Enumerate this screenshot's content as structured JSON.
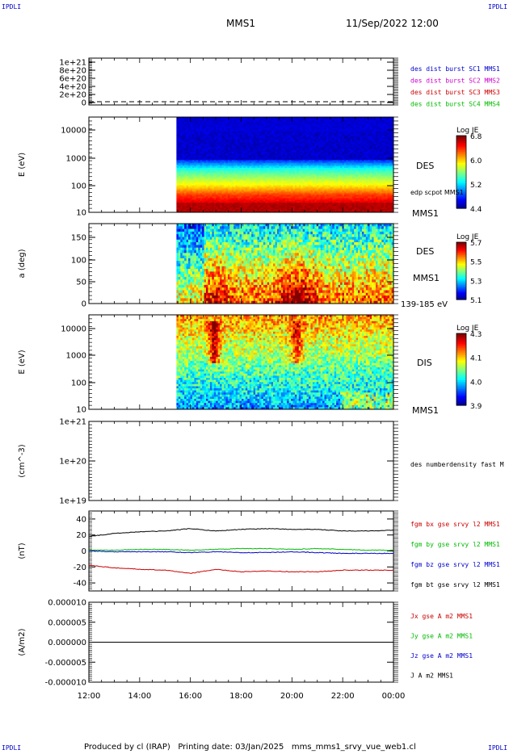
{
  "corner_marks": [
    "IPDLI",
    "IPDLI",
    "IPDLI",
    "IPDLI"
  ],
  "header": {
    "spacecraft": "MMS1",
    "datetime": "11/Sep/2022 12:00"
  },
  "footer": "Produced by cl (IRAP)   Printing date: 03/Jan/2025   mms_mms1_srvy_vue_web1.cl",
  "time_axis": {
    "ticks": [
      "12:00",
      "14:00",
      "16:00",
      "18:00",
      "20:00",
      "22:00",
      "00:00"
    ],
    "start_hour": 12,
    "end_hour": 24
  },
  "panels": [
    {
      "id": "dist",
      "ytick_labels": [
        "1e+21",
        "8e+20",
        "6e+20",
        "4e+20",
        "2e+20",
        "0"
      ],
      "legend": [
        {
          "text": "des dist burst SC1 MMS1",
          "color": "#0000cc"
        },
        {
          "text": "des dist burst SC2 MMS2",
          "color": "#cc00cc"
        },
        {
          "text": "des dist burst SC3 MMS3",
          "color": "#cc0000"
        },
        {
          "text": "des dist burst SC4 MMS4",
          "color": "#00bb00"
        }
      ]
    },
    {
      "id": "des_energy",
      "ylabel": "E (eV)",
      "ytick_labels": [
        "10000",
        "1000",
        "100",
        "10"
      ],
      "side_labels": [
        "DES",
        "edp scpot MMS1",
        "MMS1"
      ],
      "colorbar": {
        "title": "Log JE",
        "ticks": [
          "6.8",
          "6.0",
          "5.2",
          "4.4"
        ]
      },
      "data_start_hour": 15.45
    },
    {
      "id": "des_pad",
      "ylabel": "a (deg)",
      "ytick_labels": [
        "150",
        "100",
        "50",
        "0"
      ],
      "side_labels": [
        "DES",
        "MMS1",
        "139-185 eV"
      ],
      "colorbar": {
        "title": "Log JE",
        "ticks": [
          "5.7",
          "5.5",
          "5.3",
          "5.1"
        ]
      },
      "data_start_hour": 15.45
    },
    {
      "id": "dis_energy",
      "ylabel": "E (eV)",
      "ytick_labels": [
        "10000",
        "1000",
        "100",
        "10"
      ],
      "side_labels": [
        "DIS",
        "MMS1"
      ],
      "colorbar": {
        "title": "Log JE",
        "ticks": [
          "4.3",
          "4.1",
          "4.0",
          "3.9"
        ]
      },
      "data_start_hour": 15.45
    },
    {
      "id": "density",
      "ylabel": "(cm^-3)",
      "ytick_labels": [
        "1e+21",
        "1e+20",
        "1e+19"
      ],
      "legend": [
        {
          "text": "des numberdensity fast M",
          "color": "#000000"
        }
      ]
    },
    {
      "id": "bfield",
      "ylabel": "(nT)",
      "ytick_labels": [
        "40",
        "20",
        "0",
        "-20",
        "-40"
      ],
      "legend": [
        {
          "text": "fgm bx gse srvy l2 MMS1",
          "color": "#cc0000"
        },
        {
          "text": "fgm by gse srvy l2 MMS1",
          "color": "#00bb00"
        },
        {
          "text": "fgm bz gse srvy l2 MMS1",
          "color": "#0000cc"
        },
        {
          "text": "fgm bt gse srvy l2 MMS1",
          "color": "#000000"
        }
      ]
    },
    {
      "id": "current",
      "ylabel": "(A/m2)",
      "ytick_labels": [
        "0.000010",
        "0.000005",
        "0.000000",
        "-0.000005",
        "-0.000010"
      ],
      "legend": [
        {
          "text": "Jx gse A m2 MMS1",
          "color": "#cc0000"
        },
        {
          "text": "Jy gse A m2 MMS1",
          "color": "#00bb00"
        },
        {
          "text": "Jz gse A m2 MMS1",
          "color": "#0000cc"
        },
        {
          "text": "J A m2 MMS1",
          "color": "#000000"
        }
      ]
    }
  ],
  "chart_data": {
    "type": "line",
    "title": "",
    "xlabel": "",
    "x_hours": [
      12,
      13,
      14,
      15,
      16,
      17,
      18,
      19,
      20,
      21,
      22,
      23,
      24
    ],
    "xlim": [
      "12:00",
      "00:00"
    ],
    "ylim": [
      -50,
      50
    ],
    "series": [
      {
        "name": "fgm bt gse srvy l2 MMS1",
        "color": "#000000",
        "values": [
          18,
          22,
          24,
          25,
          28,
          25,
          27,
          28,
          27,
          27,
          25,
          25,
          26
        ]
      },
      {
        "name": "fgm bx gse srvy l2 MMS1",
        "color": "#cc0000",
        "values": [
          -18,
          -21,
          -23,
          -24,
          -28,
          -23,
          -26,
          -25,
          -26,
          -26,
          -24,
          -24,
          -24
        ]
      },
      {
        "name": "fgm by gse srvy l2 MMS1",
        "color": "#00bb00",
        "values": [
          1,
          1,
          2,
          2,
          1,
          2,
          3,
          3,
          2,
          3,
          2,
          1,
          1
        ]
      },
      {
        "name": "fgm bz gse srvy l2 MMS1",
        "color": "#0000cc",
        "values": [
          0,
          -1,
          -1,
          -1,
          -2,
          -1,
          -2,
          -2,
          -1,
          -2,
          -3,
          -3,
          -3
        ]
      }
    ]
  }
}
